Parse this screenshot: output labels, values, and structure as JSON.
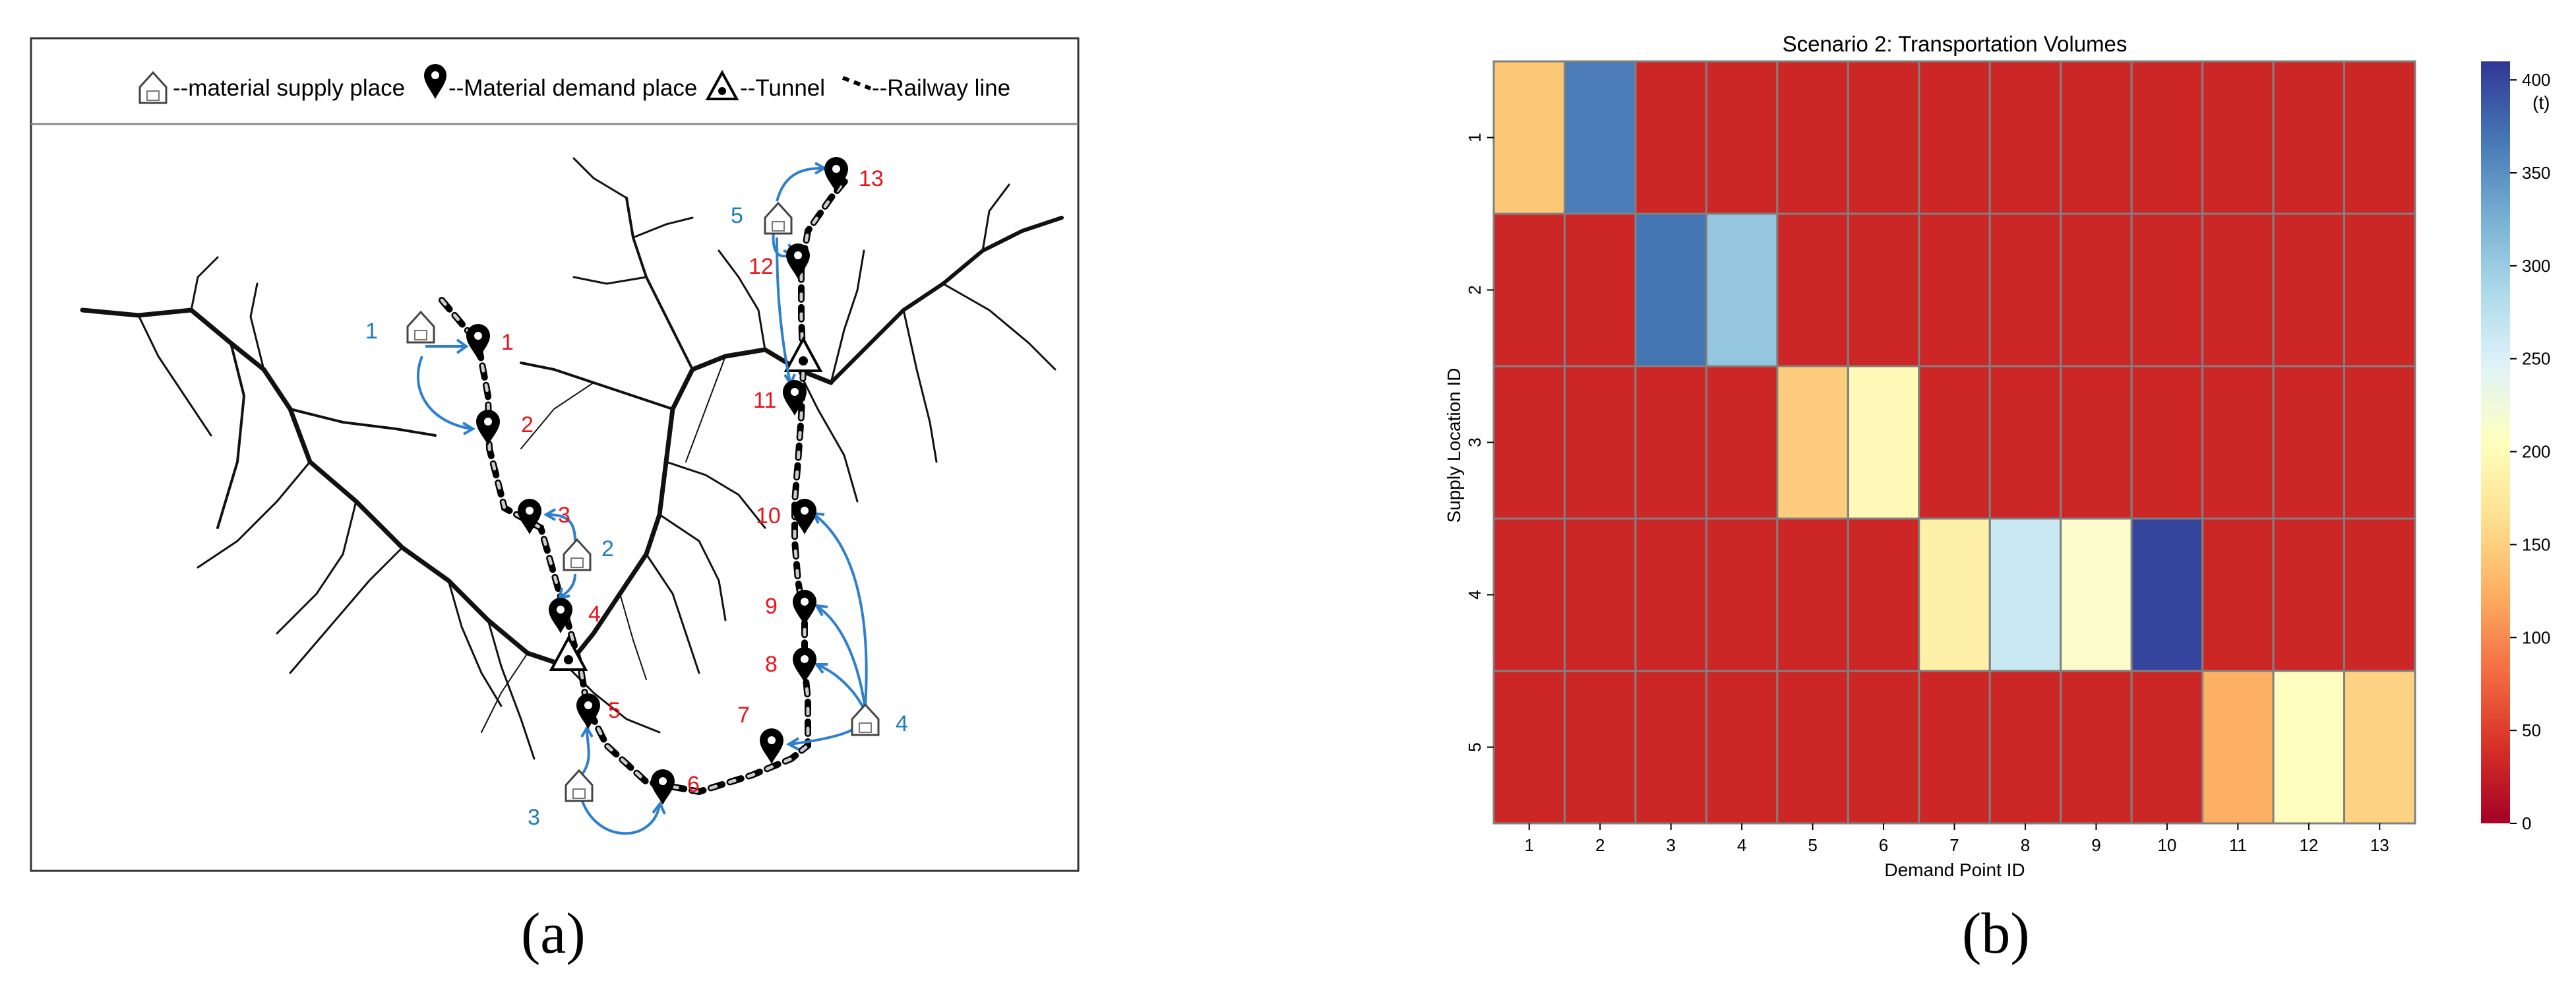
{
  "panel_a": {
    "caption": "(a)",
    "legend": {
      "supply": "--material supply place",
      "demand": "--Material demand place",
      "tunnel": "--Tunnel",
      "railway": "--Railway line"
    },
    "demand_labels": [
      "1",
      "2",
      "3",
      "4",
      "5",
      "6",
      "7",
      "8",
      "9",
      "10",
      "11",
      "12",
      "13"
    ],
    "supply_labels": [
      "1",
      "2",
      "3",
      "4",
      "5"
    ],
    "colors": {
      "demand_label": "#e8141c",
      "supply_label": "#1f7bbf",
      "arrow": "#2f7fcf"
    }
  },
  "panel_b": {
    "caption": "(b)",
    "colorbar_unit": "(t)"
  },
  "chart_data": {
    "type": "heatmap",
    "title": "Scenario 2: Transportation Volumes",
    "xlabel": "Demand Point ID",
    "ylabel": "Supply Location ID",
    "x": [
      "1",
      "2",
      "3",
      "4",
      "5",
      "6",
      "7",
      "8",
      "9",
      "10",
      "11",
      "12",
      "13"
    ],
    "y": [
      "1",
      "2",
      "3",
      "4",
      "5"
    ],
    "values": [
      [
        120,
        360,
        0,
        0,
        0,
        0,
        0,
        0,
        0,
        0,
        0,
        0,
        0
      ],
      [
        0,
        0,
        365,
        295,
        0,
        0,
        0,
        0,
        0,
        0,
        0,
        0,
        0
      ],
      [
        0,
        0,
        0,
        0,
        125,
        180,
        0,
        0,
        0,
        0,
        0,
        0,
        0
      ],
      [
        0,
        0,
        0,
        0,
        0,
        0,
        165,
        250,
        195,
        400,
        0,
        0,
        0
      ],
      [
        0,
        0,
        0,
        0,
        0,
        0,
        0,
        0,
        0,
        0,
        100,
        185,
        130
      ]
    ],
    "colormap": "RdYlBu",
    "vmin": 0,
    "vmax": 410,
    "colorbar_ticks": [
      0,
      50,
      100,
      150,
      200,
      250,
      300,
      350,
      400
    ]
  }
}
